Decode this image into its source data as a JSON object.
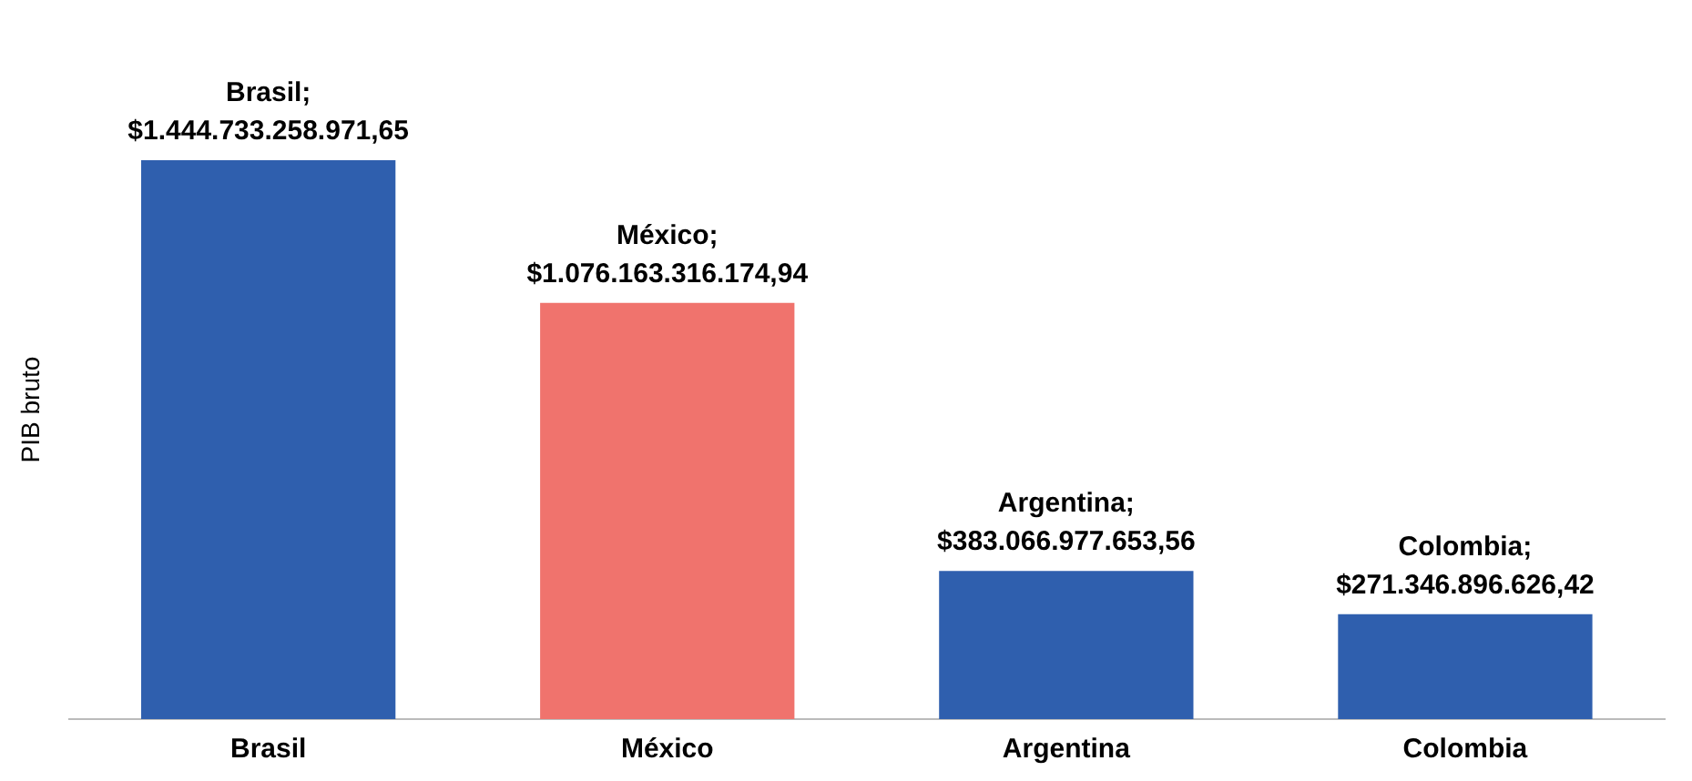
{
  "chart_data": {
    "type": "bar",
    "ylabel": "PIB bruto",
    "categories": [
      "Brasil",
      "México",
      "Argentina",
      "Colombia"
    ],
    "values": [
      1444733258971.65,
      1076163316174.94,
      383066977653.56,
      271346896626.42
    ],
    "colors": [
      "#2f5fae",
      "#f0736d",
      "#2f5fae",
      "#2f5fae"
    ],
    "value_labels": [
      "Brasil;\n$1.444.733.258.971,65",
      "México;\n$1.076.163.316.174,94",
      "Argentina;\n$383.066.977.653,56",
      "Colombia;\n$271.346.896.626,42"
    ],
    "tick_labels": "x",
    "grid": false,
    "legend": false
  }
}
